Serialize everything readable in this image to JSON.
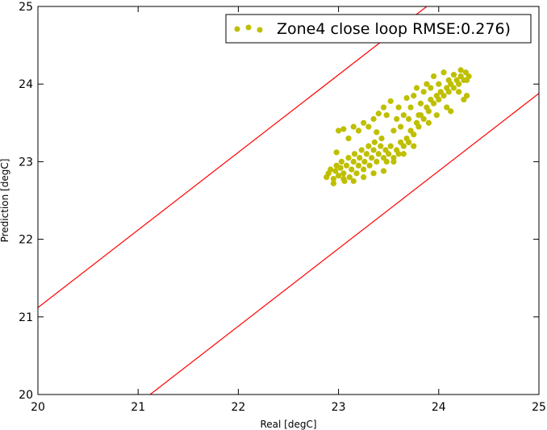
{
  "chart_data": {
    "type": "scatter",
    "title": "",
    "xlabel": "Real [degC]",
    "ylabel": "Prediction [degC]",
    "xlim": [
      20,
      25
    ],
    "ylim": [
      20,
      25
    ],
    "xticks": [
      "20",
      "21",
      "22",
      "23",
      "24",
      "25"
    ],
    "yticks": [
      "20",
      "21",
      "22",
      "23",
      "24",
      "25"
    ],
    "grid": false,
    "legend_position": "top-right",
    "series": [
      {
        "name": "Zone4 close loop RMSE:0.276)",
        "color": "#bfbf00",
        "points": [
          [
            22.88,
            22.8
          ],
          [
            22.9,
            22.85
          ],
          [
            22.92,
            22.9
          ],
          [
            22.95,
            22.78
          ],
          [
            22.97,
            22.88
          ],
          [
            22.98,
            22.95
          ],
          [
            23.0,
            22.82
          ],
          [
            23.02,
            22.92
          ],
          [
            23.03,
            23.0
          ],
          [
            23.05,
            22.85
          ],
          [
            23.06,
            22.75
          ],
          [
            23.08,
            22.95
          ],
          [
            23.1,
            23.05
          ],
          [
            23.11,
            22.8
          ],
          [
            23.13,
            22.9
          ],
          [
            23.15,
            23.0
          ],
          [
            23.16,
            23.1
          ],
          [
            23.18,
            22.85
          ],
          [
            23.2,
            22.95
          ],
          [
            23.21,
            23.05
          ],
          [
            23.23,
            23.15
          ],
          [
            23.25,
            22.9
          ],
          [
            23.26,
            23.0
          ],
          [
            23.28,
            23.1
          ],
          [
            23.3,
            23.2
          ],
          [
            23.31,
            22.95
          ],
          [
            23.33,
            23.05
          ],
          [
            23.35,
            23.15
          ],
          [
            23.36,
            23.25
          ],
          [
            23.38,
            23.0
          ],
          [
            23.4,
            23.1
          ],
          [
            23.42,
            23.2
          ],
          [
            23.43,
            23.3
          ],
          [
            23.45,
            23.05
          ],
          [
            23.47,
            23.15
          ],
          [
            23.48,
            23.0
          ],
          [
            23.5,
            23.1
          ],
          [
            23.52,
            23.2
          ],
          [
            23.55,
            23.05
          ],
          [
            23.58,
            23.15
          ],
          [
            23.6,
            23.1
          ],
          [
            23.62,
            23.25
          ],
          [
            23.65,
            23.2
          ],
          [
            23.68,
            23.3
          ],
          [
            23.7,
            23.25
          ],
          [
            23.72,
            23.4
          ],
          [
            23.75,
            23.35
          ],
          [
            23.78,
            23.5
          ],
          [
            23.8,
            23.45
          ],
          [
            23.82,
            23.6
          ],
          [
            23.85,
            23.55
          ],
          [
            23.88,
            23.7
          ],
          [
            23.9,
            23.65
          ],
          [
            23.92,
            23.8
          ],
          [
            23.95,
            23.75
          ],
          [
            23.98,
            23.85
          ],
          [
            24.0,
            23.8
          ],
          [
            24.02,
            23.9
          ],
          [
            24.05,
            23.85
          ],
          [
            24.08,
            23.95
          ],
          [
            24.1,
            23.9
          ],
          [
            24.12,
            24.0
          ],
          [
            24.15,
            23.95
          ],
          [
            24.18,
            24.05
          ],
          [
            24.2,
            24.0
          ],
          [
            24.22,
            24.1
          ],
          [
            24.25,
            24.05
          ],
          [
            24.27,
            24.15
          ],
          [
            24.28,
            23.85
          ],
          [
            24.25,
            23.8
          ],
          [
            22.98,
            23.12
          ],
          [
            23.0,
            23.4
          ],
          [
            23.05,
            23.42
          ],
          [
            23.1,
            23.3
          ],
          [
            23.15,
            23.45
          ],
          [
            23.2,
            23.4
          ],
          [
            23.25,
            23.5
          ],
          [
            23.3,
            23.45
          ],
          [
            23.35,
            23.55
          ],
          [
            23.38,
            23.38
          ],
          [
            23.4,
            23.62
          ],
          [
            23.45,
            23.7
          ],
          [
            23.48,
            23.6
          ],
          [
            23.52,
            23.78
          ],
          [
            23.55,
            23.4
          ],
          [
            23.58,
            23.55
          ],
          [
            23.6,
            23.7
          ],
          [
            23.62,
            23.45
          ],
          [
            23.65,
            23.6
          ],
          [
            23.68,
            23.82
          ],
          [
            23.7,
            23.55
          ],
          [
            23.72,
            23.7
          ],
          [
            23.75,
            23.85
          ],
          [
            23.78,
            23.95
          ],
          [
            23.8,
            23.6
          ],
          [
            23.82,
            23.75
          ],
          [
            23.85,
            23.9
          ],
          [
            23.88,
            24.0
          ],
          [
            23.9,
            23.5
          ],
          [
            23.92,
            23.95
          ],
          [
            23.95,
            24.1
          ],
          [
            23.98,
            23.6
          ],
          [
            24.0,
            24.0
          ],
          [
            24.05,
            24.15
          ],
          [
            24.08,
            23.7
          ],
          [
            24.1,
            24.05
          ],
          [
            24.12,
            23.65
          ],
          [
            24.15,
            24.12
          ],
          [
            24.2,
            23.9
          ],
          [
            24.22,
            24.18
          ],
          [
            24.28,
            24.05
          ],
          [
            24.3,
            24.1
          ],
          [
            23.7,
            23.25
          ],
          [
            23.75,
            23.2
          ],
          [
            23.65,
            23.1
          ],
          [
            23.55,
            23.0
          ],
          [
            23.45,
            22.88
          ],
          [
            23.35,
            22.85
          ],
          [
            23.25,
            22.8
          ],
          [
            23.15,
            22.75
          ],
          [
            23.05,
            22.78
          ],
          [
            22.95,
            22.72
          ]
        ]
      }
    ],
    "reference_lines": [
      {
        "color": "#ff0000",
        "points": [
          [
            20,
            21.12
          ],
          [
            23.88,
            25
          ]
        ]
      },
      {
        "color": "#ff0000",
        "points": [
          [
            21.12,
            20
          ],
          [
            25,
            23.88
          ]
        ]
      }
    ]
  }
}
